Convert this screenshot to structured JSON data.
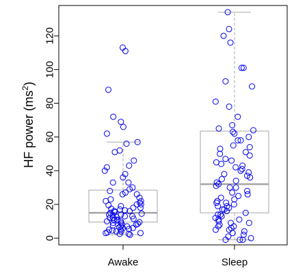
{
  "chart_data": {
    "type": "boxplot",
    "title": "",
    "xlabel": "",
    "ylabel": "HF power (ms",
    "ylabel_superscript": "2",
    "ylabel_close": ")",
    "ylim": [
      -4,
      138
    ],
    "y_ticks": [
      0,
      20,
      40,
      60,
      80,
      100,
      120
    ],
    "y_tick_labels": [
      "0",
      "20",
      "40",
      "60",
      "80",
      "100",
      "120"
    ],
    "grid": false,
    "point_color": "#0000ee",
    "box_color": "#a6a6a6",
    "categories": [
      "Awake",
      "Sleep"
    ],
    "boxes": [
      {
        "name": "Awake",
        "whisker_low": 2,
        "q1": 9.5,
        "median": 15,
        "q3": 28.5,
        "whisker_high": 57
      },
      {
        "name": "Sleep",
        "whisker_low": -1,
        "q1": 15,
        "median": 32,
        "q3": 63.5,
        "whisker_high": 134
      }
    ],
    "points": [
      [
        113,
        111,
        88,
        72,
        69,
        66,
        62,
        57,
        56,
        52,
        51,
        46,
        43,
        42,
        36,
        33,
        29,
        28,
        27,
        26,
        23,
        22,
        21,
        20,
        19.5,
        19,
        18,
        17.5,
        17,
        16.5,
        16,
        15.5,
        15,
        14.5,
        14,
        13.5,
        13,
        12.5,
        12,
        11.5,
        11,
        10.5,
        10,
        9.5,
        9,
        8.5,
        8,
        7.5,
        7,
        6.5,
        6,
        5.5,
        5,
        4.5,
        4,
        3.5,
        3,
        2.5,
        2,
        2.5,
        3,
        4,
        5,
        6,
        7,
        8,
        9,
        10,
        11,
        12,
        13,
        14,
        16,
        18,
        20,
        22,
        24,
        26,
        30,
        33,
        38,
        40
      ],
      [
        134,
        124,
        120,
        116,
        101,
        101,
        93,
        90,
        81,
        78,
        72,
        67,
        65,
        64,
        63,
        60,
        58,
        55,
        53,
        51,
        49,
        47,
        45,
        44,
        43,
        41,
        40,
        39,
        38,
        37,
        35,
        33,
        32,
        31,
        30,
        28,
        26,
        24,
        23,
        22,
        21,
        20,
        19,
        18,
        17,
        16,
        15,
        14,
        13,
        12,
        11,
        10,
        9,
        8,
        7,
        6,
        5,
        4,
        3,
        2,
        1,
        0,
        -1,
        -1,
        -1,
        5,
        7,
        9,
        11,
        14,
        17,
        19,
        21,
        25,
        27,
        30,
        34,
        36,
        42,
        46,
        50,
        54,
        58,
        62
      ]
    ]
  }
}
